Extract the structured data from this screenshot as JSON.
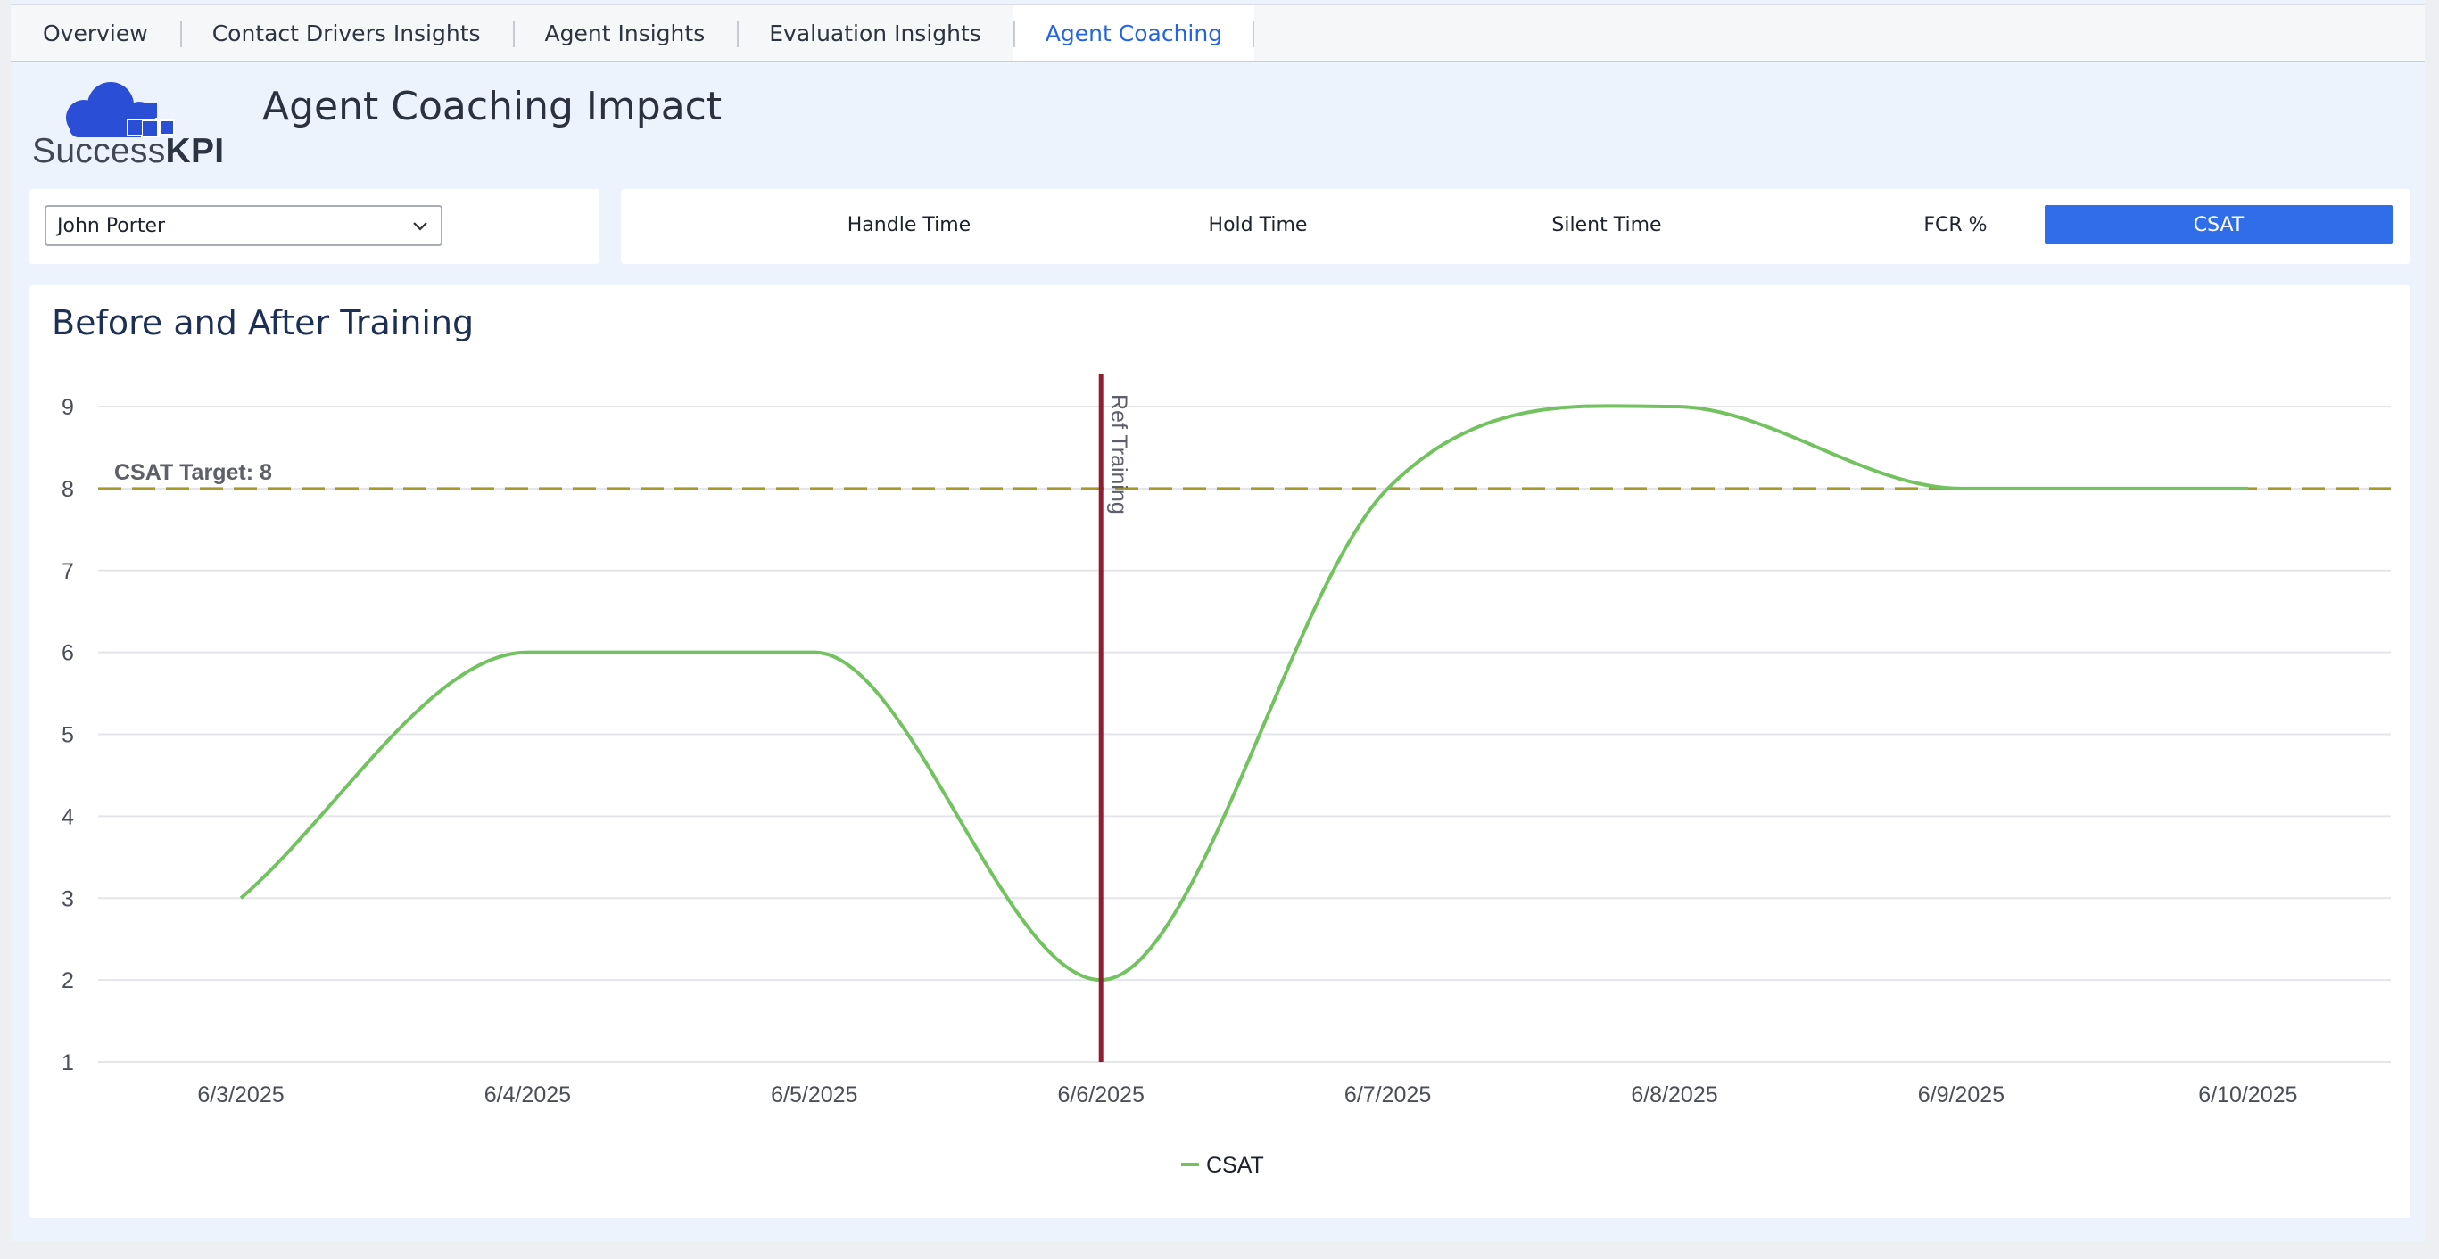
{
  "tabs": [
    {
      "label": "Overview"
    },
    {
      "label": "Contact Drivers Insights"
    },
    {
      "label": "Agent Insights"
    },
    {
      "label": "Evaluation Insights"
    },
    {
      "label": "Agent Coaching",
      "active": true
    }
  ],
  "brand": {
    "logo_prefix": "Success",
    "logo_suffix": "KPI",
    "logo_color": "#2a4fd6",
    "icon": "cloud-logo-icon"
  },
  "header": {
    "title": "Agent Coaching Impact"
  },
  "agent_select": {
    "value": "John Porter",
    "icon": "chevron-down-icon"
  },
  "metrics": [
    {
      "label": "Handle Time"
    },
    {
      "label": "Hold Time"
    },
    {
      "label": "Silent Time"
    },
    {
      "label": "FCR %"
    },
    {
      "label": "CSAT",
      "active": true
    }
  ],
  "colors": {
    "accent": "#2f6ee8",
    "series": "#72c260",
    "target_line": "#a89a2a",
    "ref_line": "#8e1f33"
  },
  "chart_data": {
    "type": "line",
    "title": "Before and After Training",
    "x": [
      "6/3/2025",
      "6/4/2025",
      "6/5/2025",
      "6/6/2025",
      "6/7/2025",
      "6/8/2025",
      "6/9/2025",
      "6/10/2025"
    ],
    "series": [
      {
        "name": "CSAT",
        "values": [
          3,
          6,
          6,
          2,
          8,
          9,
          8,
          8
        ]
      }
    ],
    "yticks": [
      1,
      2,
      3,
      4,
      5,
      6,
      7,
      8,
      9
    ],
    "ylim": [
      1,
      9
    ],
    "grid": true,
    "legend": "bottom-center",
    "target": {
      "label": "CSAT Target: 8",
      "value": 8
    },
    "reference": {
      "label": "Ref Training",
      "x": "6/6/2025"
    }
  }
}
